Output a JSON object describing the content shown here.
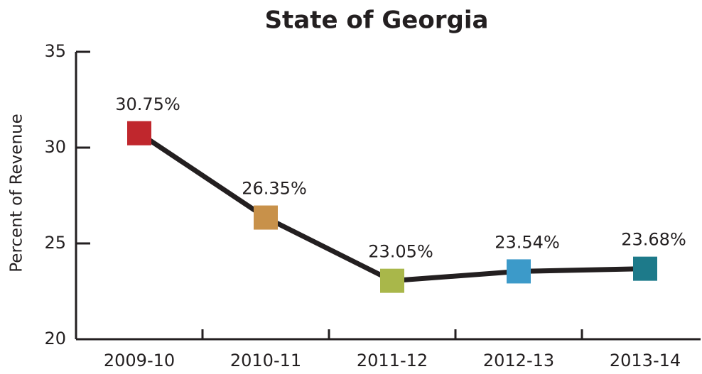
{
  "chart_data": {
    "type": "line",
    "title": "State of Georgia",
    "y_label": "Percent of Revenue",
    "categories": [
      "2009-10",
      "2010-11",
      "2011-12",
      "2012-13",
      "2013-14"
    ],
    "series": [
      {
        "name": "State of Georgia",
        "color": "#231f20",
        "marker_colors": [
          "#c0272d",
          "#c8914a",
          "#a9b74a",
          "#3c9ac9",
          "#1d7a8a"
        ],
        "values": [
          30.75,
          26.35,
          23.05,
          23.54,
          23.68
        ],
        "value_labels": [
          "30.75%",
          "26.35%",
          "23.05%",
          "23.54%",
          "23.68%"
        ]
      }
    ],
    "ylim": [
      20,
      35
    ],
    "yticks": [
      20,
      25,
      30,
      35
    ],
    "marker": "square"
  }
}
